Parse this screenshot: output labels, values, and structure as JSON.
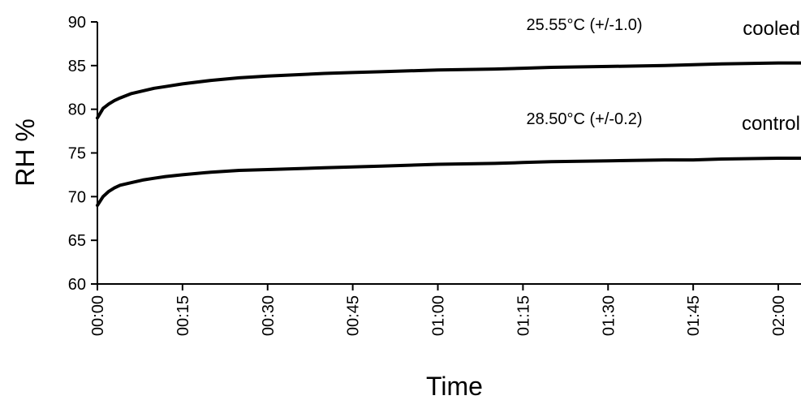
{
  "chart_data": {
    "type": "line",
    "title": "",
    "xlabel": "Time",
    "ylabel": "RH %",
    "x_ticks": [
      "00:00",
      "00:15",
      "00:30",
      "00:45",
      "01:00",
      "01:15",
      "01:30",
      "01:45",
      "02:00"
    ],
    "x_range_minutes": [
      0,
      124
    ],
    "y_ticks": [
      60,
      65,
      70,
      75,
      80,
      85,
      90
    ],
    "ylim": [
      60,
      90
    ],
    "grid": false,
    "legend": "none",
    "line_color": "#000000",
    "series": [
      {
        "name": "cooled",
        "x_minutes": [
          0,
          1,
          2,
          3,
          4,
          6,
          8,
          10,
          12,
          15,
          20,
          25,
          30,
          40,
          45,
          50,
          60,
          70,
          75,
          80,
          90,
          100,
          105,
          110,
          120,
          124
        ],
        "values": [
          79.0,
          80.1,
          80.6,
          81.0,
          81.3,
          81.8,
          82.1,
          82.4,
          82.6,
          82.9,
          83.3,
          83.6,
          83.8,
          84.1,
          84.2,
          84.3,
          84.5,
          84.6,
          84.7,
          84.8,
          84.9,
          85.0,
          85.1,
          85.2,
          85.3,
          85.3
        ]
      },
      {
        "name": "control",
        "x_minutes": [
          0,
          1,
          2,
          3,
          4,
          6,
          8,
          10,
          12,
          15,
          20,
          25,
          30,
          40,
          45,
          50,
          60,
          70,
          75,
          80,
          90,
          100,
          105,
          110,
          120,
          124
        ],
        "values": [
          69.0,
          70.0,
          70.6,
          71.0,
          71.3,
          71.6,
          71.9,
          72.1,
          72.3,
          72.5,
          72.8,
          73.0,
          73.1,
          73.3,
          73.4,
          73.5,
          73.7,
          73.8,
          73.9,
          74.0,
          74.1,
          74.2,
          74.2,
          74.3,
          74.4,
          74.4
        ]
      }
    ],
    "annotations": [
      {
        "text": "25.55°C (+/-1.0)",
        "series": "cooled"
      },
      {
        "text": "28.50°C (+/-0.2)",
        "series": "control"
      }
    ],
    "series_labels": [
      "cooled",
      "control"
    ]
  }
}
